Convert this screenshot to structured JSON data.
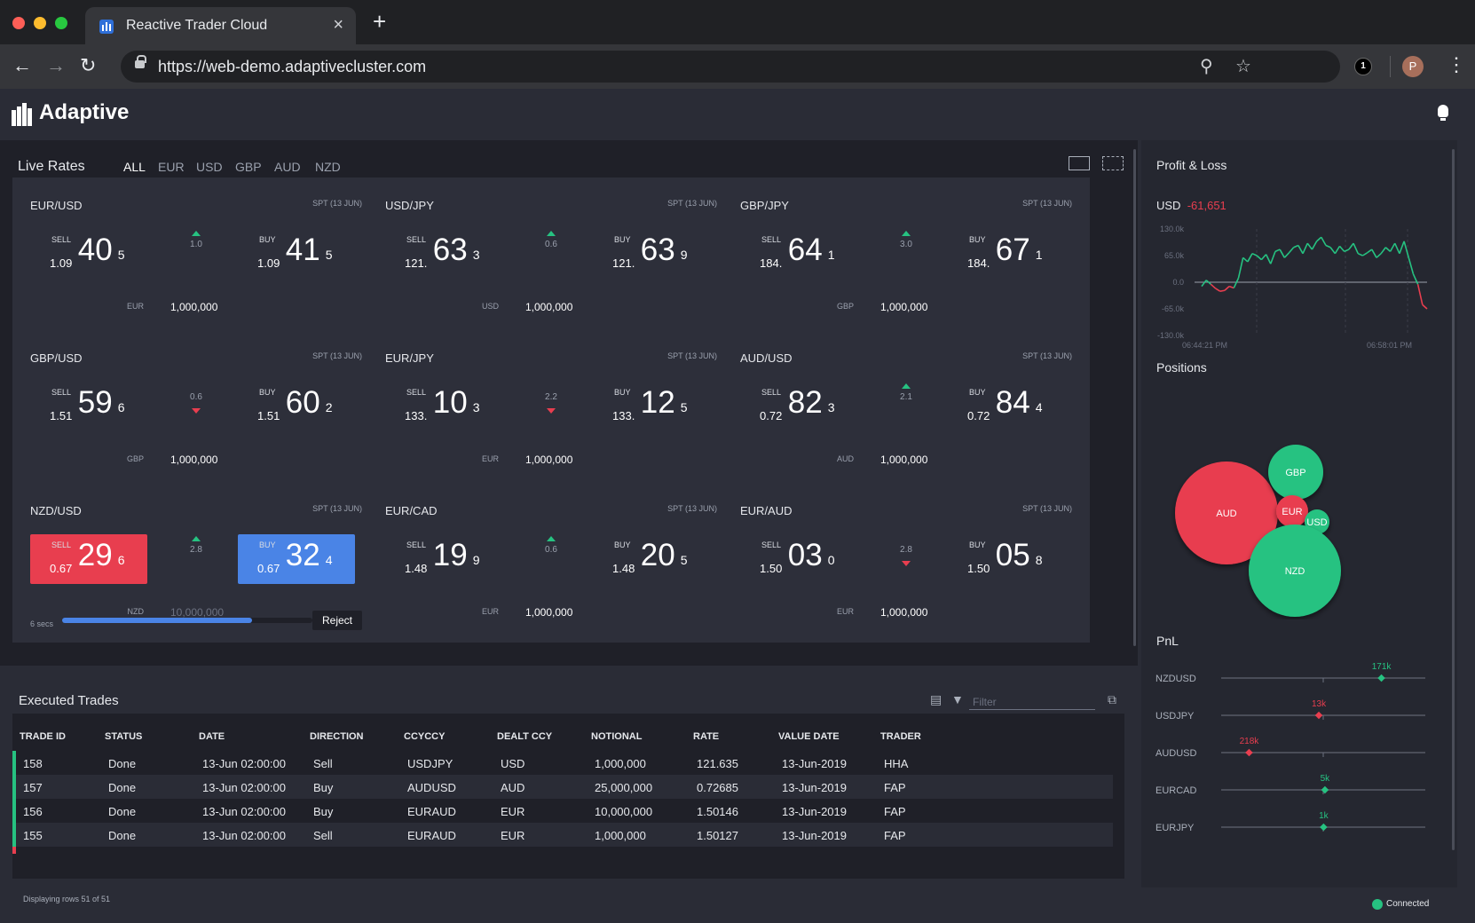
{
  "browser": {
    "tab_title": "Reactive Trader Cloud",
    "url": "https://web-demo.adaptivecluster.com",
    "extension_badge": "1",
    "avatar_initial": "P"
  },
  "app": {
    "logo": "Adaptive"
  },
  "live_rates": {
    "title": "Live Rates",
    "filters": [
      "ALL",
      "EUR",
      "USD",
      "GBP",
      "AUD",
      "NZD"
    ],
    "tiles": [
      {
        "pair": "EUR/USD",
        "spt": "SPT (13 JUN)",
        "sell": {
          "big": "1.09",
          "pip": "40",
          "frac": "5"
        },
        "buy": {
          "big": "1.09",
          "pip": "41",
          "frac": "5"
        },
        "spread": "1.0",
        "dir": "up",
        "ccy": "EUR",
        "notional": "1,000,000"
      },
      {
        "pair": "USD/JPY",
        "spt": "SPT (13 JUN)",
        "sell": {
          "big": "121.",
          "pip": "63",
          "frac": "3"
        },
        "buy": {
          "big": "121.",
          "pip": "63",
          "frac": "9"
        },
        "spread": "0.6",
        "dir": "up",
        "ccy": "USD",
        "notional": "1,000,000"
      },
      {
        "pair": "GBP/JPY",
        "spt": "SPT (13 JUN)",
        "sell": {
          "big": "184.",
          "pip": "64",
          "frac": "1"
        },
        "buy": {
          "big": "184.",
          "pip": "67",
          "frac": "1"
        },
        "spread": "3.0",
        "dir": "up",
        "ccy": "GBP",
        "notional": "1,000,000"
      },
      {
        "pair": "GBP/USD",
        "spt": "SPT (13 JUN)",
        "sell": {
          "big": "1.51",
          "pip": "59",
          "frac": "6"
        },
        "buy": {
          "big": "1.51",
          "pip": "60",
          "frac": "2"
        },
        "spread": "0.6",
        "dir": "down",
        "ccy": "GBP",
        "notional": "1,000,000"
      },
      {
        "pair": "EUR/JPY",
        "spt": "SPT (13 JUN)",
        "sell": {
          "big": "133.",
          "pip": "10",
          "frac": "3"
        },
        "buy": {
          "big": "133.",
          "pip": "12",
          "frac": "5"
        },
        "spread": "2.2",
        "dir": "down",
        "ccy": "EUR",
        "notional": "1,000,000"
      },
      {
        "pair": "AUD/USD",
        "spt": "SPT (13 JUN)",
        "sell": {
          "big": "0.72",
          "pip": "82",
          "frac": "3"
        },
        "buy": {
          "big": "0.72",
          "pip": "84",
          "frac": "4"
        },
        "spread": "2.1",
        "dir": "up",
        "ccy": "AUD",
        "notional": "1,000,000"
      },
      {
        "pair": "NZD/USD",
        "spt": "SPT (13 JUN)",
        "sell": {
          "big": "0.67",
          "pip": "29",
          "frac": "6"
        },
        "buy": {
          "big": "0.67",
          "pip": "32",
          "frac": "4"
        },
        "spread": "2.8",
        "dir": "up",
        "ccy": "NZD",
        "notional": "10,000,000",
        "secs": "6 secs",
        "reject": "Reject",
        "progress": 0.76
      },
      {
        "pair": "EUR/CAD",
        "spt": "SPT (13 JUN)",
        "sell": {
          "big": "1.48",
          "pip": "19",
          "frac": "9"
        },
        "buy": {
          "big": "1.48",
          "pip": "20",
          "frac": "5"
        },
        "spread": "0.6",
        "dir": "up",
        "ccy": "EUR",
        "notional": "1,000,000"
      },
      {
        "pair": "EUR/AUD",
        "spt": "SPT (13 JUN)",
        "sell": {
          "big": "1.50",
          "pip": "03",
          "frac": "0"
        },
        "buy": {
          "big": "1.50",
          "pip": "05",
          "frac": "8"
        },
        "spread": "2.8",
        "dir": "down",
        "ccy": "EUR",
        "notional": "1,000,000"
      }
    ],
    "sell_label": "SELL",
    "buy_label": "BUY"
  },
  "trades": {
    "title": "Executed Trades",
    "filter_placeholder": "Filter",
    "columns": [
      "TRADE ID",
      "STATUS",
      "DATE",
      "DIRECTION",
      "CCYCCY",
      "DEALT CCY",
      "NOTIONAL",
      "RATE",
      "VALUE DATE",
      "TRADER"
    ],
    "rows": [
      [
        "158",
        "Done",
        "13-Jun 02:00:00",
        "Sell",
        "USDJPY",
        "USD",
        "1,000,000",
        "121.635",
        "13-Jun-2019",
        "HHA"
      ],
      [
        "157",
        "Done",
        "13-Jun 02:00:00",
        "Buy",
        "AUDUSD",
        "AUD",
        "25,000,000",
        "0.72685",
        "13-Jun-2019",
        "FAP"
      ],
      [
        "156",
        "Done",
        "13-Jun 02:00:00",
        "Buy",
        "EURAUD",
        "EUR",
        "10,000,000",
        "1.50146",
        "13-Jun-2019",
        "FAP"
      ],
      [
        "155",
        "Done",
        "13-Jun 02:00:00",
        "Sell",
        "EURAUD",
        "EUR",
        "1,000,000",
        "1.50127",
        "13-Jun-2019",
        "FAP"
      ]
    ],
    "displaying": "Displaying rows 51 of 51"
  },
  "pnl_panel": {
    "title": "Profit & Loss",
    "ccy": "USD",
    "value": "-61,651",
    "y_ticks": [
      "130.0k",
      "65.0k",
      "0.0",
      "-65.0k",
      "-130.0k"
    ],
    "x_ticks": [
      "06:44:21 PM",
      "06:58:01 PM"
    ],
    "series": [
      -10,
      5,
      -5,
      -15,
      -22,
      -20,
      -10,
      -14,
      10,
      60,
      50,
      70,
      65,
      55,
      68,
      45,
      75,
      80,
      60,
      72,
      85,
      90,
      70,
      95,
      80,
      100,
      110,
      90,
      85,
      70,
      88,
      75,
      80,
      95,
      70,
      65,
      72,
      80,
      60,
      70,
      85,
      75,
      95,
      70,
      100,
      60,
      20,
      -5,
      -55,
      -65
    ]
  },
  "positions": {
    "title": "Positions",
    "bubbles": [
      {
        "ccy": "AUD",
        "color": "#e83e4f"
      },
      {
        "ccy": "GBP",
        "color": "#26c281"
      },
      {
        "ccy": "EUR",
        "color": "#e83e4f"
      },
      {
        "ccy": "USD",
        "color": "#26c281"
      },
      {
        "ccy": "NZD",
        "color": "#26c281"
      }
    ]
  },
  "pnl_bars": {
    "title": "PnL",
    "items": [
      {
        "pair": "NZDUSD",
        "label": "171k",
        "value": 171,
        "color": "#26c281"
      },
      {
        "pair": "USDJPY",
        "label": "13k",
        "value": -13,
        "color": "#e83e4f"
      },
      {
        "pair": "AUDUSD",
        "label": "218k",
        "value": -218,
        "color": "#e83e4f"
      },
      {
        "pair": "EURCAD",
        "label": "5k",
        "value": 5,
        "color": "#26c281"
      },
      {
        "pair": "EURJPY",
        "label": "1k",
        "value": 1,
        "color": "#26c281"
      }
    ],
    "range": [
      -300,
      300
    ]
  },
  "status": {
    "label": "Connected"
  }
}
